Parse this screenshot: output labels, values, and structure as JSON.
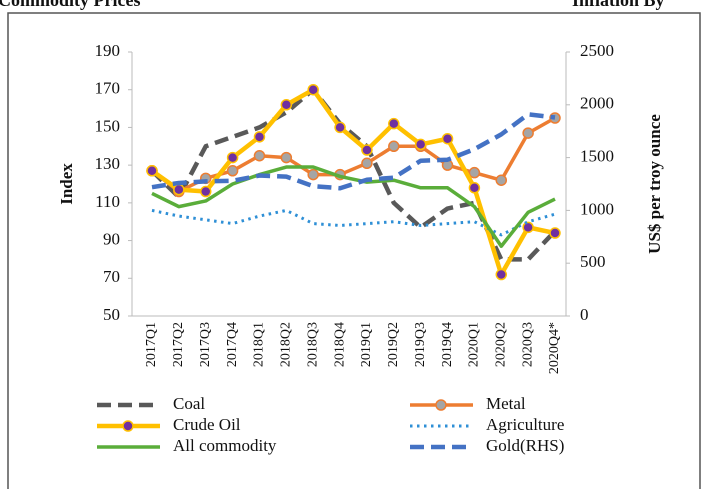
{
  "header": {
    "left": "Commodity Prices",
    "right": "Inflation By"
  },
  "chart_data": {
    "type": "line",
    "ylabel": "Index",
    "y2label": "US$ per troy ounce",
    "categories": [
      "2017Q1",
      "2017Q2",
      "2017Q3",
      "2017Q4",
      "2018Q1",
      "2018Q2",
      "2018Q3",
      "2018Q4",
      "2019Q1",
      "2019Q2",
      "2019Q3",
      "2019Q4",
      "2020Q1",
      "2020Q2",
      "2020Q3",
      "2020Q4*"
    ],
    "ylim": [
      50,
      190
    ],
    "yticks": [
      50,
      70,
      90,
      110,
      130,
      150,
      170,
      190
    ],
    "y2lim": [
      0,
      2500
    ],
    "y2ticks": [
      0,
      500,
      1000,
      1500,
      2000,
      2500
    ],
    "series": [
      {
        "name": "Coal",
        "color": "#595959",
        "dash": "dashed",
        "values": [
          127,
          113,
          140,
          145,
          150,
          158,
          170,
          152,
          140,
          110,
          97,
          107,
          110,
          80,
          80,
          95
        ]
      },
      {
        "name": "Metal",
        "color": "#ed7d31",
        "dash": "solid",
        "marker": "circle",
        "marker_color": "#a5a5a5",
        "values": [
          127,
          116,
          123,
          127,
          135,
          134,
          125,
          125,
          131,
          140,
          140,
          130,
          126,
          122,
          147,
          155
        ]
      },
      {
        "name": "Crude Oil",
        "color": "#ffc000",
        "dash": "solid",
        "marker": "circle",
        "marker_color": "#7030a0",
        "values": [
          127,
          117,
          116,
          134,
          145,
          162,
          170,
          150,
          138,
          152,
          141,
          144,
          118,
          72,
          97,
          94
        ]
      },
      {
        "name": "Agriculture",
        "color": "#2e8fd6",
        "dash": "dotted",
        "values": [
          106,
          103,
          101,
          99,
          103,
          106,
          99,
          98,
          99,
          100,
          98,
          99,
          100,
          93,
          100,
          104
        ]
      },
      {
        "name": "All commodity",
        "color": "#5aad3a",
        "dash": "solid",
        "values": [
          115,
          108,
          111,
          120,
          125,
          129,
          129,
          124,
          121,
          122,
          118,
          118,
          108,
          87,
          105,
          112
        ]
      },
      {
        "name": "Gold(RHS)",
        "color": "#4472c4",
        "dash": "dashed",
        "axis": "y2",
        "values": [
          1220,
          1260,
          1275,
          1280,
          1330,
          1320,
          1230,
          1210,
          1290,
          1310,
          1470,
          1480,
          1580,
          1720,
          1910,
          1880
        ]
      }
    ]
  }
}
